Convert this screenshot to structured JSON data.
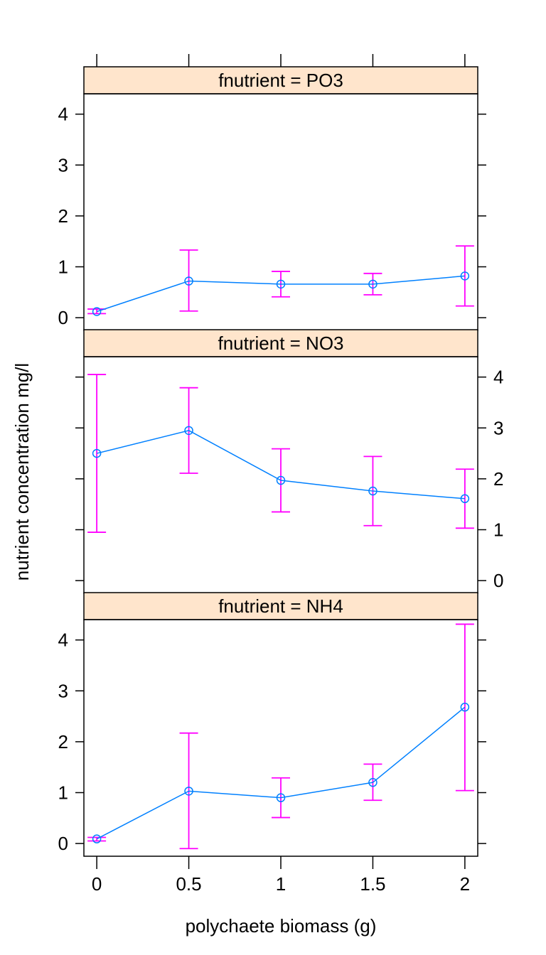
{
  "chart_data": {
    "type": "line",
    "xlabel": "polychaete biomass (g)",
    "ylabel": "nutrient concentration mg/l",
    "x_ticks": [
      "0",
      "0.5",
      "1",
      "1.5",
      "2"
    ],
    "y_ticks": [
      "0",
      "1",
      "2",
      "3",
      "4"
    ],
    "xlim": [
      -0.07,
      2.07
    ],
    "ylim": [
      -0.25,
      4.4
    ],
    "colors": {
      "line": "#0080ff",
      "error_bars": "#ff00ff",
      "strip": "#ffe5cc"
    },
    "panels": [
      {
        "label": "fnutrient = PO3",
        "x": [
          0,
          0.5,
          1,
          1.5,
          2
        ],
        "mean": [
          0.12,
          0.72,
          0.66,
          0.66,
          0.82
        ],
        "lower": [
          0.08,
          0.13,
          0.41,
          0.45,
          0.23
        ],
        "upper": [
          0.17,
          1.33,
          0.91,
          0.87,
          1.41
        ]
      },
      {
        "label": "fnutrient = NO3",
        "x": [
          0,
          0.5,
          1,
          1.5,
          2
        ],
        "mean": [
          2.5,
          2.95,
          1.97,
          1.76,
          1.61
        ],
        "lower": [
          0.95,
          2.11,
          1.35,
          1.08,
          1.03
        ],
        "upper": [
          4.05,
          3.79,
          2.59,
          2.44,
          2.19
        ]
      },
      {
        "label": "fnutrient = NH4",
        "x": [
          0,
          0.5,
          1,
          1.5,
          2
        ],
        "mean": [
          0.09,
          1.03,
          0.9,
          1.2,
          2.68
        ],
        "lower": [
          0.05,
          -0.1,
          0.51,
          0.85,
          1.04
        ],
        "upper": [
          0.12,
          2.17,
          1.29,
          1.56,
          4.31
        ]
      }
    ]
  }
}
